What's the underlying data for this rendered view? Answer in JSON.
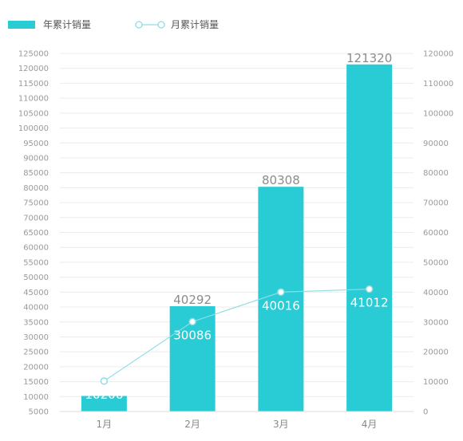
{
  "chart_data": {
    "type": "bar",
    "categories": [
      "1月",
      "2月",
      "3月",
      "4月"
    ],
    "series": [
      {
        "name": "年累计销量",
        "type": "bar",
        "axis": "left",
        "color": "#29CBD5",
        "values": [
          10206,
          40292,
          80308,
          121320
        ],
        "labels": [
          "",
          "40292",
          "80308",
          "121320"
        ]
      },
      {
        "name": "月累计销量",
        "type": "line",
        "axis": "right",
        "color": "#8FDDE3",
        "values": [
          10206,
          30086,
          40016,
          41012
        ],
        "labels": [
          "10206",
          "30086",
          "40016",
          "41012"
        ]
      }
    ],
    "left_axis": {
      "min": 5000,
      "max": 125000,
      "step": 5000
    },
    "right_axis": {
      "min": 0,
      "max": 120000,
      "step": 10000
    },
    "grid": true,
    "legend_position": "top-left"
  }
}
